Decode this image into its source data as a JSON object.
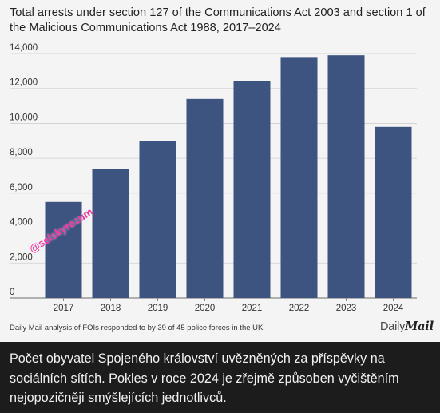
{
  "chart_data": {
    "type": "bar",
    "title": "Total arrests under section 127 of the Communications Act 2003 and section 1 of the Malicious Communications Act 1988, 2017–2024",
    "categories": [
      "2017",
      "2018",
      "2019",
      "2020",
      "2021",
      "2022",
      "2023",
      "2024"
    ],
    "values": [
      5500,
      7400,
      9000,
      11400,
      12400,
      13800,
      13900,
      9800
    ],
    "ylim": [
      0,
      14000
    ],
    "yticks": [
      0,
      2000,
      4000,
      6000,
      8000,
      10000,
      12000,
      14000
    ],
    "ytick_labels": [
      "0",
      "2,000",
      "4,000",
      "6,000",
      "8,000",
      "10,000",
      "12,000",
      "14,000"
    ],
    "grid": true,
    "bar_color": "#3d5480",
    "xlabel": "",
    "ylabel": ""
  },
  "source_note": "Daily Mail analysis of FOIs responded to by 39 of 45 police forces in the UK",
  "publisher": {
    "part1": "Daily",
    "part2": "Mail"
  },
  "watermark": "@selskyrozum",
  "caption": "Počet obyvatel Spojeného království uvězněných za příspěvky na sociálních sítích. Pokles v roce 2024 je zřejmě způsoben vyčištěním nejopozičněji smýšlejících jednotlivců.",
  "colors": {
    "background_card": "#f4f4f4",
    "background_page": "#1c1c1c",
    "grid": "#cfcfcf",
    "watermark": "#ff2fa0"
  }
}
